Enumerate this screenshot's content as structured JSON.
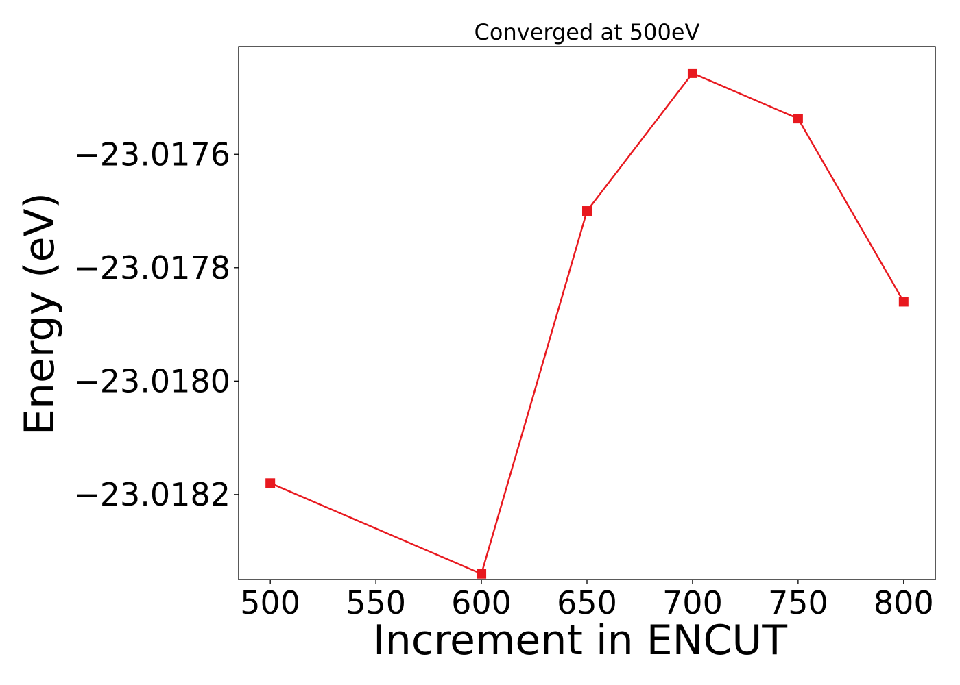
{
  "chart_data": {
    "type": "line",
    "title": "Converged at 500eV",
    "xlabel": "Increment in ENCUT",
    "ylabel": "Energy (eV)",
    "x": [
      500,
      600,
      650,
      700,
      750,
      800
    ],
    "series": [
      {
        "values": [
          -23.01818,
          -23.01834,
          -23.0177,
          -23.017457,
          -23.017537,
          -23.01786
        ],
        "color": "#e8191f",
        "marker": "square"
      }
    ],
    "xticks": [
      500,
      550,
      600,
      650,
      700,
      750,
      800
    ],
    "xtick_labels": [
      "500",
      "550",
      "600",
      "650",
      "700",
      "750",
      "800"
    ],
    "yticks": [
      -23.0182,
      -23.018,
      -23.0178,
      -23.0176
    ],
    "ytick_labels": [
      "−23.0182",
      "−23.0180",
      "−23.0178",
      "−23.0176"
    ],
    "xlim": [
      485,
      815
    ],
    "ylim": [
      -23.01835,
      -23.01741
    ],
    "grid": false,
    "legend": false
  }
}
